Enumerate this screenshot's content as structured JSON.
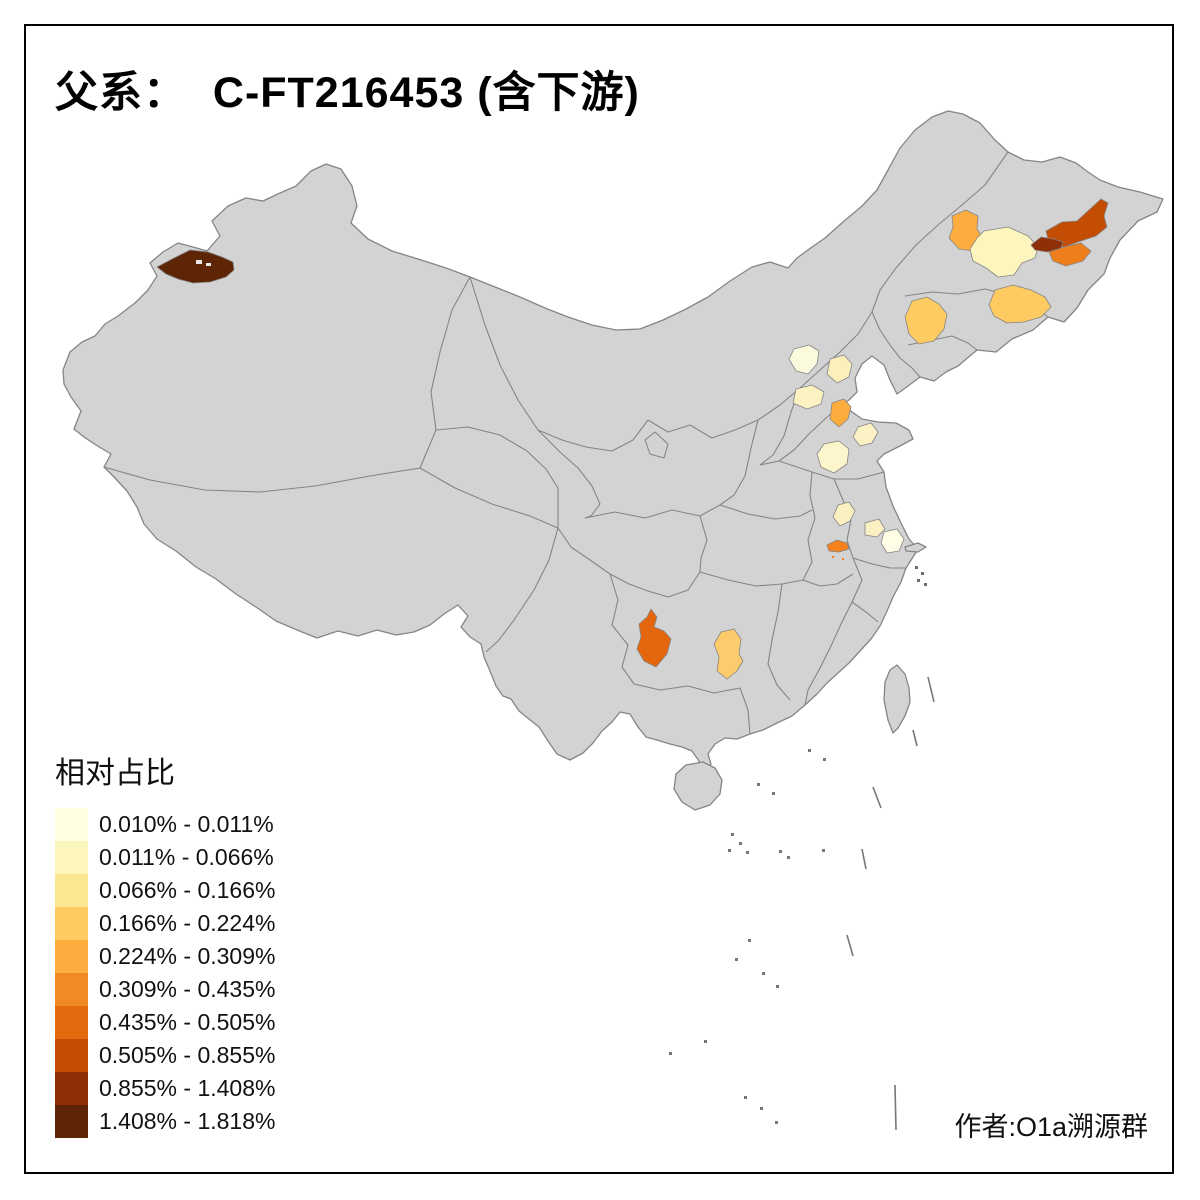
{
  "title": "父系：  C-FT216453 (含下游)",
  "author": "作者:O1a溯源群",
  "legend": {
    "title": "相对占比",
    "bins": [
      {
        "label": "0.010% - 0.011%",
        "color": "#FFFFE2"
      },
      {
        "label": "0.011% - 0.066%",
        "color": "#FCF5BE"
      },
      {
        "label": "0.066% - 0.166%",
        "color": "#FDE692"
      },
      {
        "label": "0.166% - 0.224%",
        "color": "#FDCB62"
      },
      {
        "label": "0.224% - 0.309%",
        "color": "#FDAD3D"
      },
      {
        "label": "0.309% - 0.435%",
        "color": "#F18A23"
      },
      {
        "label": "0.435% - 0.505%",
        "color": "#E56A0F"
      },
      {
        "label": "0.505% - 0.855%",
        "color": "#C44D04"
      },
      {
        "label": "0.855% - 1.408%",
        "color": "#8E2F08"
      },
      {
        "label": "1.408% - 1.818%",
        "color": "#5E2406"
      }
    ]
  },
  "map": {
    "land_color": "#D3D3D3",
    "border_color": "#858585",
    "sea_color": "#FFFFFF",
    "regions": [
      {
        "id": "xinjiang-northwest",
        "area": "Northwest Xinjiang",
        "range": "1.408% - 1.818%",
        "color": "#5E2406"
      },
      {
        "id": "heilongjiang-west",
        "area": "Western Heilongjiang",
        "range": "0.224% - 0.309%",
        "color": "#FDAD3D"
      },
      {
        "id": "heilongjiang-central",
        "area": "Central Heilongjiang",
        "range": "0.011% - 0.066%",
        "color": "#FCF5BE"
      },
      {
        "id": "heilongjiang-east",
        "area": "Eastern Heilongjiang",
        "range": "0.505% - 0.855%",
        "color": "#C44D04"
      },
      {
        "id": "heilongjiang-east-small",
        "area": "East Heilongjiang small prefecture",
        "range": "0.855% - 1.408%",
        "color": "#8E2F08"
      },
      {
        "id": "heilongjiang-southeast",
        "area": "Southeast Heilongjiang",
        "range": "0.309% - 0.435%",
        "color": "#EE7D1B"
      },
      {
        "id": "jilin-east",
        "area": "Eastern Jilin",
        "range": "0.166% - 0.224%",
        "color": "#FDCB62"
      },
      {
        "id": "jilin-central",
        "area": "Central Jilin",
        "range": "0.166% - 0.224%",
        "color": "#FDCB62"
      },
      {
        "id": "beijing-area",
        "area": "Beijing area",
        "range": "0.011% - 0.066%",
        "color": "#FCFADC"
      },
      {
        "id": "hebei-east",
        "area": "Eastern Hebei",
        "range": "0.011% - 0.066%",
        "color": "#FBEFBC"
      },
      {
        "id": "hebei-south",
        "area": "Southern Hebei",
        "range": "0.011% - 0.066%",
        "color": "#FCF2C2"
      },
      {
        "id": "shandong-north-coast",
        "area": "North Shandong coast",
        "range": "0.224% - 0.309%",
        "color": "#FDAD3D"
      },
      {
        "id": "shandong-east",
        "area": "Eastern Shandong",
        "range": "0.011% - 0.066%",
        "color": "#FCF2C6"
      },
      {
        "id": "shandong-central",
        "area": "Central Shandong",
        "range": "0.011% - 0.066%",
        "color": "#FDF6CC"
      },
      {
        "id": "jiangsu-north",
        "area": "Northern Jiangsu",
        "range": "0.066% - 0.166%",
        "color": "#FAF0C0"
      },
      {
        "id": "jiangsu-central",
        "area": "Central Jiangsu",
        "range": "0.011% - 0.066%",
        "color": "#FAF0C4"
      },
      {
        "id": "jiangsu-southeast",
        "area": "Southeast Jiangsu",
        "range": "0.010% - 0.011%",
        "color": "#FFFDE6"
      },
      {
        "id": "anhui-central",
        "area": "Central Anhui",
        "range": "0.309% - 0.435%",
        "color": "#F5821F"
      },
      {
        "id": "guizhou-central",
        "area": "Central Guizhou",
        "range": "0.435% - 0.505%",
        "color": "#E4660C"
      },
      {
        "id": "hunan-west",
        "area": "Western Hunan",
        "range": "0.166% - 0.224%",
        "color": "#FCCB6B"
      }
    ]
  }
}
